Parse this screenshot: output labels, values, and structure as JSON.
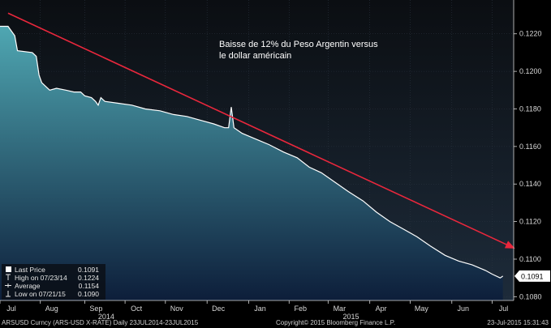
{
  "chart_data": {
    "type": "area",
    "series_name": "ARSUSD Curncy (ARS-USD X-RATE)",
    "annotation": "Baisse de 12% du Peso Argentin versus le dollar américain",
    "annotation_lines": [
      "Baisse de 12% du Peso Argentin versus",
      "le dollar américain"
    ],
    "ylim": [
      0.1078,
      0.1238
    ],
    "yticks": [
      0.108,
      0.11,
      0.112,
      0.114,
      0.116,
      0.118,
      0.12,
      0.122
    ],
    "ytick_labels": [
      "0.1080",
      "0.1100",
      "0.1120",
      "0.1140",
      "0.1160",
      "0.1180",
      "0.1200",
      "0.1220"
    ],
    "grid": true,
    "xlim": [
      "2014-07-14",
      "2015-07-31"
    ],
    "xticks": [
      {
        "label": "Jul",
        "date": "2014-07-14"
      },
      {
        "label": "Aug",
        "date": "2014-08-13"
      },
      {
        "label": "Sep",
        "date": "2014-09-15"
      },
      {
        "label": "Oct",
        "date": "2014-10-15"
      },
      {
        "label": "Nov",
        "date": "2014-11-14"
      },
      {
        "label": "Dec",
        "date": "2014-12-15"
      },
      {
        "label": "Jan",
        "date": "2015-01-15"
      },
      {
        "label": "Feb",
        "date": "2015-02-14"
      },
      {
        "label": "Mar",
        "date": "2015-03-15"
      },
      {
        "label": "Apr",
        "date": "2015-04-15"
      },
      {
        "label": "May",
        "date": "2015-05-15"
      },
      {
        "label": "Jun",
        "date": "2015-06-15"
      },
      {
        "label": "Jul",
        "date": "2015-07-15"
      }
    ],
    "year_labels": [
      {
        "label": "2014",
        "date": "2014-10-01"
      },
      {
        "label": "2015",
        "date": "2015-04-01"
      }
    ],
    "points": [
      {
        "x": "2014-07-14",
        "y": 0.1224
      },
      {
        "x": "2014-07-20",
        "y": 0.1224
      },
      {
        "x": "2014-07-25",
        "y": 0.1219
      },
      {
        "x": "2014-07-27",
        "y": 0.1211
      },
      {
        "x": "2014-08-07",
        "y": 0.121
      },
      {
        "x": "2014-08-10",
        "y": 0.1208
      },
      {
        "x": "2014-08-12",
        "y": 0.1198
      },
      {
        "x": "2014-08-14",
        "y": 0.1194
      },
      {
        "x": "2014-08-17",
        "y": 0.1192
      },
      {
        "x": "2014-08-20",
        "y": 0.119
      },
      {
        "x": "2014-08-25",
        "y": 0.1191
      },
      {
        "x": "2014-09-01",
        "y": 0.119
      },
      {
        "x": "2014-09-07",
        "y": 0.1189
      },
      {
        "x": "2014-09-12",
        "y": 0.1189
      },
      {
        "x": "2014-09-15",
        "y": 0.1187
      },
      {
        "x": "2014-09-20",
        "y": 0.1186
      },
      {
        "x": "2014-09-23",
        "y": 0.1184
      },
      {
        "x": "2014-09-25",
        "y": 0.1182
      },
      {
        "x": "2014-09-27",
        "y": 0.1186
      },
      {
        "x": "2014-09-30",
        "y": 0.1184
      },
      {
        "x": "2014-10-10",
        "y": 0.1183
      },
      {
        "x": "2014-10-20",
        "y": 0.1182
      },
      {
        "x": "2014-10-30",
        "y": 0.118
      },
      {
        "x": "2014-11-10",
        "y": 0.1179
      },
      {
        "x": "2014-11-20",
        "y": 0.1177
      },
      {
        "x": "2014-11-30",
        "y": 0.1176
      },
      {
        "x": "2014-12-10",
        "y": 0.1174
      },
      {
        "x": "2014-12-20",
        "y": 0.1172
      },
      {
        "x": "2014-12-28",
        "y": 0.117
      },
      {
        "x": "2014-12-31",
        "y": 0.117
      },
      {
        "x": "2015-01-02",
        "y": 0.1181
      },
      {
        "x": "2015-01-04",
        "y": 0.117
      },
      {
        "x": "2015-01-10",
        "y": 0.1167
      },
      {
        "x": "2015-01-20",
        "y": 0.1164
      },
      {
        "x": "2015-01-30",
        "y": 0.1161
      },
      {
        "x": "2015-02-10",
        "y": 0.1157
      },
      {
        "x": "2015-02-20",
        "y": 0.1154
      },
      {
        "x": "2015-03-01",
        "y": 0.1149
      },
      {
        "x": "2015-03-10",
        "y": 0.1146
      },
      {
        "x": "2015-03-20",
        "y": 0.1141
      },
      {
        "x": "2015-03-30",
        "y": 0.1136
      },
      {
        "x": "2015-04-10",
        "y": 0.1131
      },
      {
        "x": "2015-04-20",
        "y": 0.1125
      },
      {
        "x": "2015-04-30",
        "y": 0.112
      },
      {
        "x": "2015-05-10",
        "y": 0.1116
      },
      {
        "x": "2015-05-20",
        "y": 0.1112
      },
      {
        "x": "2015-05-30",
        "y": 0.1107
      },
      {
        "x": "2015-06-10",
        "y": 0.1102
      },
      {
        "x": "2015-06-20",
        "y": 0.1099
      },
      {
        "x": "2015-06-30",
        "y": 0.1097
      },
      {
        "x": "2015-07-10",
        "y": 0.1094
      },
      {
        "x": "2015-07-15",
        "y": 0.1092
      },
      {
        "x": "2015-07-21",
        "y": 0.109
      },
      {
        "x": "2015-07-23",
        "y": 0.1091
      }
    ],
    "trend_arrow": {
      "from": {
        "x": "2014-07-20",
        "y": 0.1231
      },
      "to": {
        "x": "2015-07-31",
        "y": 0.1106
      }
    },
    "last_price": 0.1091,
    "last_price_label": "0.1091",
    "legend": [
      {
        "label": "Last Price",
        "value": "0.1091",
        "marker": "square"
      },
      {
        "label": "High on 07/23/14",
        "value": "0.1224",
        "marker": "up-tick"
      },
      {
        "label": "Average",
        "value": "0.1154",
        "marker": "dash"
      },
      {
        "label": "Low on 07/21/15",
        "value": "0.1090",
        "marker": "down-tick"
      }
    ],
    "legend_position": "bottom-left"
  },
  "footer": {
    "left": "ARSUSD Curncy (ARS-USD X-RATE)  Daily 23JUL2014-23JUL2015",
    "center": "Copyright© 2015 Bloomberg Finance L.P.",
    "right": "23-Jul-2015 15:31:43"
  },
  "colors": {
    "background": "#000000",
    "plot_top": "#0b0e12",
    "plot_bottom": "#1d2b3a",
    "area_top": "#4fa7b2",
    "area_bottom": "#0d1e3a",
    "line": "#ffffff",
    "grid": "#2a3440",
    "arrow": "#e8273c",
    "axis_text": "#d8d8d8",
    "price_box": "#ffffff"
  }
}
